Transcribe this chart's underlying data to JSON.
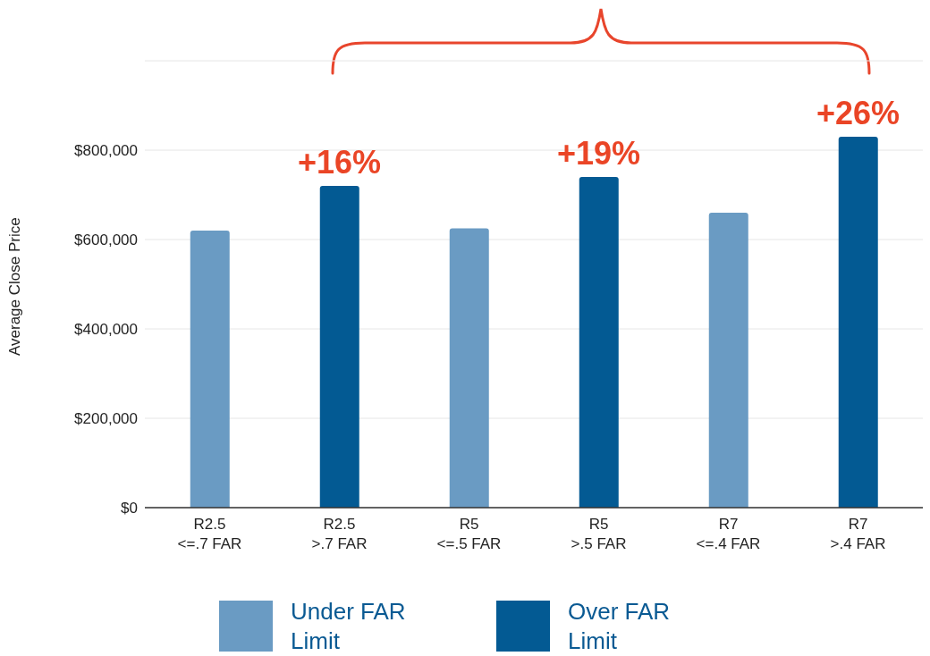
{
  "chart_data": {
    "type": "bar",
    "stacked": true,
    "ylabel": "Average Close Price",
    "categories": [
      "R2.5\n<=.7 FAR",
      "R2.5\n>.7 FAR",
      "R5\n<=.5 FAR",
      "R5\n>.5 FAR",
      "R7\n<=.4 FAR",
      "R7\n>.4 FAR"
    ],
    "series": [
      {
        "name": "Under FAR Limit",
        "color": "#6a9bc3",
        "values": [
          620000,
          null,
          625000,
          null,
          660000,
          null
        ]
      },
      {
        "name": "Over FAR Limit",
        "color": "#035a93",
        "values": [
          null,
          720000,
          null,
          740000,
          null,
          830000
        ]
      }
    ],
    "ylim": [
      0,
      1000000
    ],
    "yticks": [
      {
        "value": 0,
        "label": "$0"
      },
      {
        "value": 200000,
        "label": "$200,000"
      },
      {
        "value": 400000,
        "label": "$400,000"
      },
      {
        "value": 600000,
        "label": "$600,000"
      },
      {
        "value": 800000,
        "label": "$800,000"
      }
    ],
    "grid": "y",
    "legend": "bottom",
    "annotations": [
      {
        "text": "+16%",
        "x": "R2.5\n>.7 FAR",
        "y": 720000
      },
      {
        "text": "+19%",
        "x": "R5\n>.5 FAR",
        "y": 740000
      },
      {
        "text": "+26%",
        "x": "R7\n>.4 FAR",
        "y": 830000
      }
    ]
  }
}
